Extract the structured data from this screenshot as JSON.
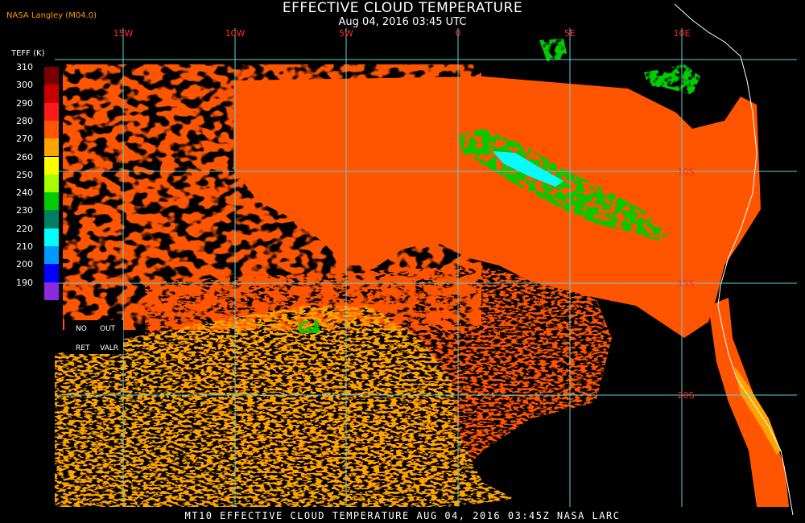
{
  "header": {
    "title": "EFFECTIVE CLOUD TEMPERATURE",
    "subtitle": "Aug 04, 2016 03:45 UTC",
    "producer": "NASA Langley (M04.0)"
  },
  "footer": {
    "text": "MT10  EFFECTIVE CLOUD TEMPERATURE  AUG 04, 2016 03:45Z  NASA LARC"
  },
  "colorbar": {
    "title": "TEFF (K)",
    "ticks": [
      "310",
      "300",
      "290",
      "280",
      "270",
      "260",
      "250",
      "240",
      "230",
      "220",
      "210",
      "200",
      "190"
    ],
    "colors": [
      "#7a0000",
      "#c80000",
      "#ff1a1a",
      "#ff5500",
      "#ffa500",
      "#ffff00",
      "#a6ff00",
      "#00cc00",
      "#008060",
      "#00ffff",
      "#0099ff",
      "#0000ff",
      "#8a2be2"
    ]
  },
  "legend_extra": {
    "no": "NO",
    "out": "OUT",
    "ret": "RET",
    "valr": "VALR"
  },
  "map": {
    "lon_labels": [
      "15W",
      "10W",
      "5W",
      "0",
      "5E",
      "10E"
    ],
    "lat_labels": [
      "10S",
      "15S",
      "20S"
    ],
    "colors": {
      "grid": "#5fd0d8",
      "grid_label": "#ff2a2a",
      "coast": "#ffffff",
      "cloud_warm": "#ff5500",
      "cloud_low": "#ffa500",
      "cloud_high": "#00cc00",
      "cloud_cold": "#00ffff",
      "clear": "#000000"
    }
  }
}
